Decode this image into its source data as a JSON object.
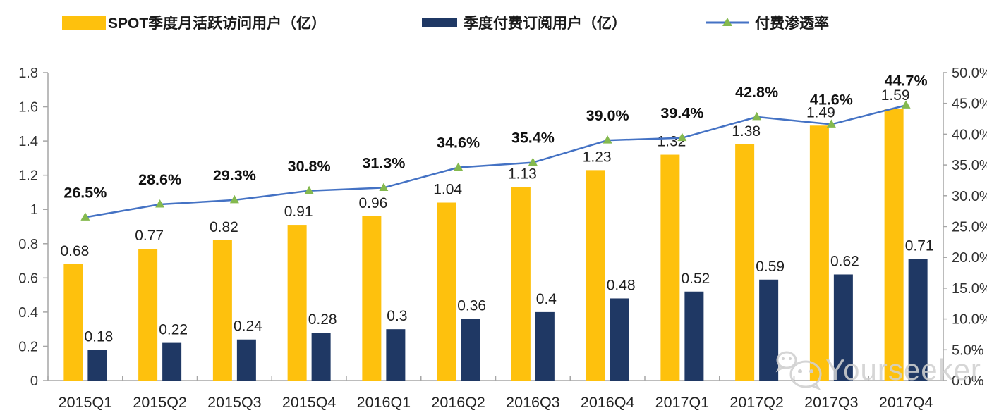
{
  "legend": {
    "items": [
      {
        "label": "SPOT季度月活跃访问用户（亿）"
      },
      {
        "label": "季度付费订阅用户（亿）"
      },
      {
        "label": "付费渗透率"
      }
    ]
  },
  "colors": {
    "mau_bar": "#FEC10D",
    "subs_bar": "#1F3864",
    "rate_line": "#4472C4",
    "rate_marker": "#84B94E",
    "axis": "#A6A6A6",
    "label_text": "#1F1F1F",
    "watermark": "#D0D0D0"
  },
  "chart_data": {
    "type": "bar",
    "subtype": "grouped-bars-with-line",
    "categories": [
      "2015Q1",
      "2015Q2",
      "2015Q3",
      "2015Q4",
      "2016Q1",
      "2016Q2",
      "2016Q3",
      "2016Q4",
      "2017Q1",
      "2017Q2",
      "2017Q3",
      "2017Q4"
    ],
    "series": [
      {
        "name": "SPOT季度月活跃访问用户（亿）",
        "type": "bar",
        "axis": "left",
        "color": "#FEC10D",
        "values": [
          0.68,
          0.77,
          0.82,
          0.91,
          0.96,
          1.04,
          1.13,
          1.23,
          1.32,
          1.38,
          1.49,
          1.59
        ],
        "labels": [
          "0.68",
          "0.77",
          "0.82",
          "0.91",
          "0.96",
          "1.04",
          "1.13",
          "1.23",
          "1.32",
          "1.38",
          "1.49",
          "1.59"
        ]
      },
      {
        "name": "季度付费订阅用户（亿）",
        "type": "bar",
        "axis": "left",
        "color": "#1F3864",
        "values": [
          0.18,
          0.22,
          0.24,
          0.28,
          0.3,
          0.36,
          0.4,
          0.48,
          0.52,
          0.59,
          0.62,
          0.71
        ],
        "labels": [
          "0.18",
          "0.22",
          "0.24",
          "0.28",
          "0.3",
          "0.36",
          "0.4",
          "0.48",
          "0.52",
          "0.59",
          "0.62",
          "0.71"
        ]
      },
      {
        "name": "付费渗透率",
        "type": "line",
        "axis": "right",
        "color": "#4472C4",
        "marker": "triangle",
        "marker_color": "#84B94E",
        "values": [
          26.5,
          28.6,
          29.3,
          30.8,
          31.3,
          34.6,
          35.4,
          39.0,
          39.4,
          42.8,
          41.6,
          44.7
        ],
        "labels": [
          "26.5%",
          "28.6%",
          "29.3%",
          "30.8%",
          "31.3%",
          "34.6%",
          "35.4%",
          "39.0%",
          "39.4%",
          "42.8%",
          "41.6%",
          "44.7%"
        ]
      }
    ],
    "left_axis": {
      "min": 0,
      "max": 1.8,
      "step": 0.2,
      "ticks": [
        "1.8",
        "1.6",
        "1.4",
        "1.2",
        "1",
        "0.8",
        "0.6",
        "0.4",
        "0.2",
        "0"
      ]
    },
    "right_axis": {
      "min": 0,
      "max": 50,
      "step": 5,
      "ticks": [
        "50.0%",
        "45.0%",
        "40.0%",
        "35.0%",
        "30.0%",
        "25.0%",
        "20.0%",
        "15.0%",
        "10.0%",
        "5.0%",
        "0.0%"
      ]
    },
    "grid": false,
    "legend_position": "top",
    "title": ""
  },
  "watermark": {
    "text": "Yourseeker",
    "icon": "wechat-icon"
  }
}
